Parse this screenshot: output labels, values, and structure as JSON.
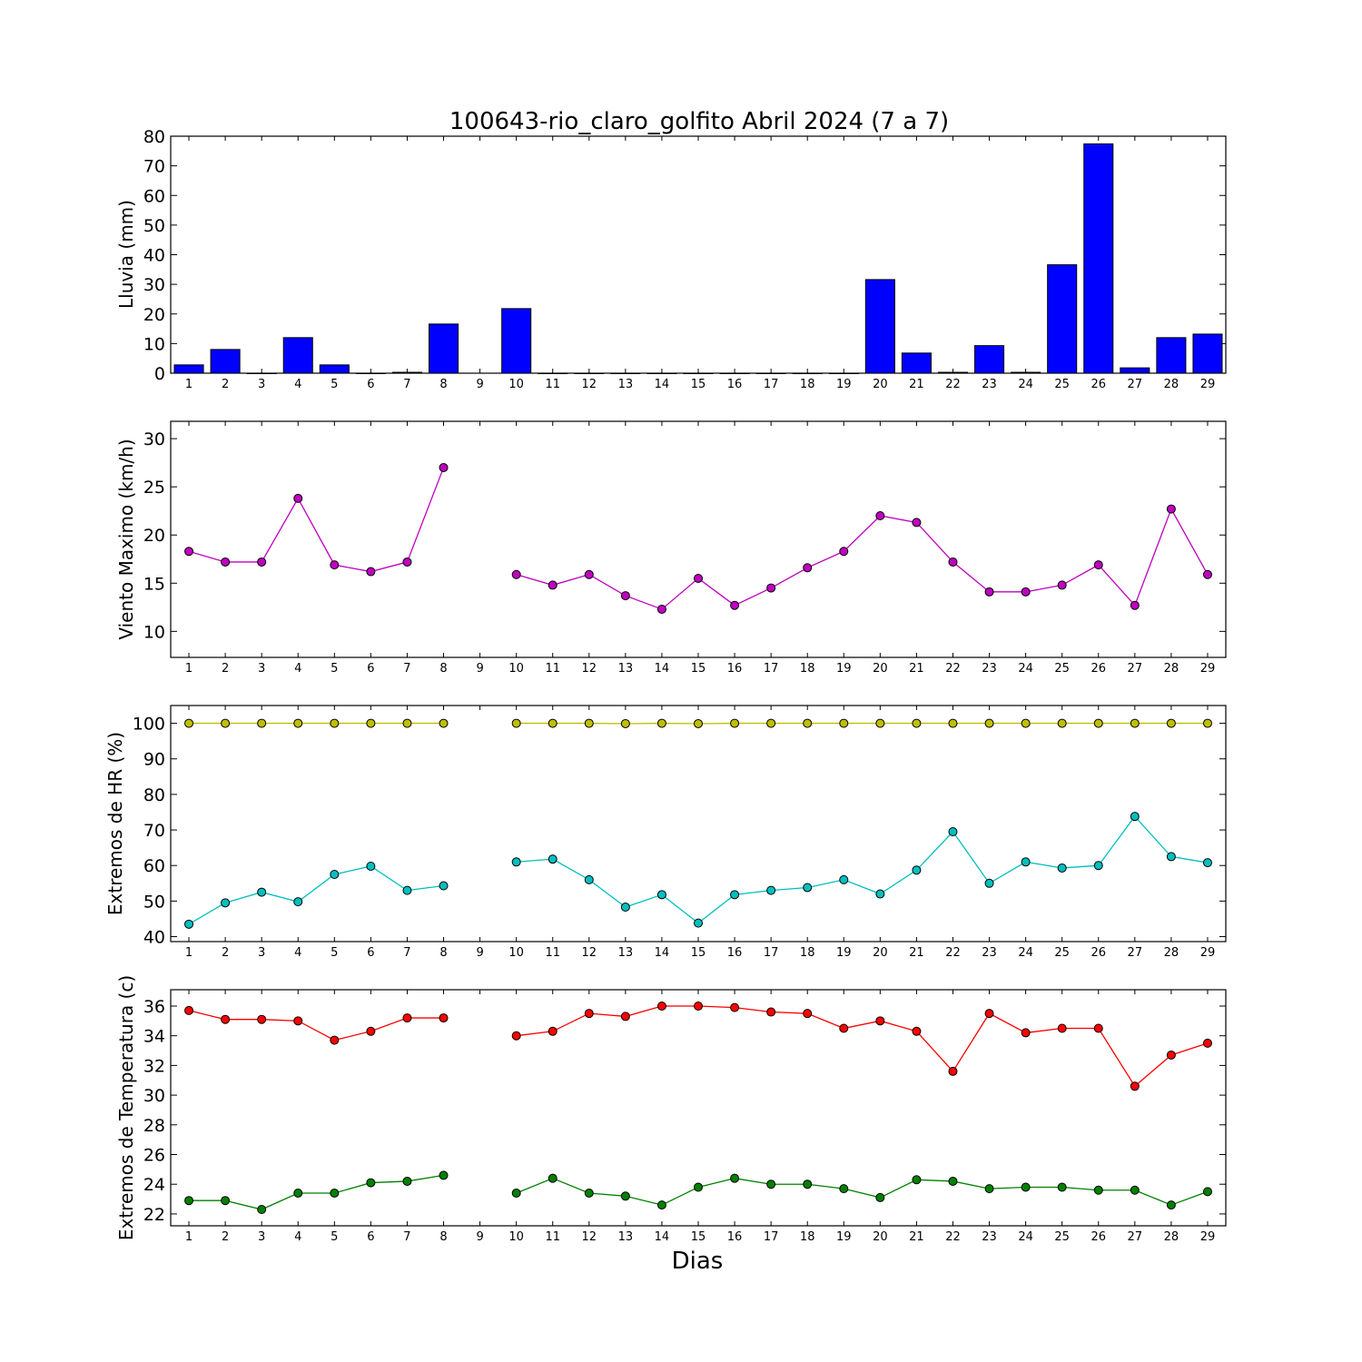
{
  "title": "100643-rio_claro_golfito Abril 2024  (7 a 7)",
  "xlabel": "Dias",
  "colors": {
    "rain": "#0000ff",
    "wind": "#bf00bf",
    "hr_max": "#bfbf00",
    "hr_min": "#00bfbf",
    "temp_max": "#ff0000",
    "temp_min": "#008000"
  },
  "chart_data": [
    {
      "type": "bar",
      "ylabel": "Lluvia (mm)",
      "ylim": [
        0,
        80
      ],
      "yticks": [
        0,
        10,
        20,
        30,
        40,
        50,
        60,
        70,
        80
      ],
      "x": [
        1,
        2,
        3,
        4,
        5,
        6,
        7,
        8,
        9,
        10,
        11,
        12,
        13,
        14,
        15,
        16,
        17,
        18,
        19,
        20,
        21,
        22,
        23,
        24,
        25,
        26,
        27,
        28,
        29
      ],
      "series": [
        {
          "color_key": "rain",
          "values": [
            2.8,
            8.0,
            0,
            12.0,
            2.8,
            0,
            0.3,
            16.6,
            null,
            21.8,
            0,
            0,
            0,
            0,
            0,
            0,
            0,
            0,
            0,
            31.6,
            6.8,
            0.3,
            9.3,
            0.3,
            36.6,
            77.4,
            1.8,
            12.0,
            13.2
          ]
        }
      ]
    },
    {
      "type": "line",
      "ylabel": "Viento Maximo (km/h)",
      "ylim": [
        7.3,
        31.8
      ],
      "yticks": [
        10,
        15,
        20,
        25,
        30
      ],
      "x": [
        1,
        2,
        3,
        4,
        5,
        6,
        7,
        8,
        9,
        10,
        11,
        12,
        13,
        14,
        15,
        16,
        17,
        18,
        19,
        20,
        21,
        22,
        23,
        24,
        25,
        26,
        27,
        28,
        29
      ],
      "series": [
        {
          "color_key": "wind",
          "values": [
            18.3,
            17.2,
            17.2,
            23.8,
            16.9,
            16.2,
            17.2,
            27.0,
            null,
            15.9,
            14.8,
            15.9,
            13.7,
            12.3,
            15.5,
            12.7,
            14.5,
            16.6,
            18.3,
            22.0,
            21.3,
            17.2,
            14.1,
            14.1,
            14.8,
            16.9,
            12.7,
            22.7,
            15.9
          ]
        }
      ]
    },
    {
      "type": "line",
      "ylabel": "Extremos de HR (%)",
      "ylim": [
        38.6,
        105
      ],
      "yticks": [
        40,
        50,
        60,
        70,
        80,
        90,
        100
      ],
      "x": [
        1,
        2,
        3,
        4,
        5,
        6,
        7,
        8,
        9,
        10,
        11,
        12,
        13,
        14,
        15,
        16,
        17,
        18,
        19,
        20,
        21,
        22,
        23,
        24,
        25,
        26,
        27,
        28,
        29
      ],
      "series": [
        {
          "color_key": "hr_max",
          "values": [
            100,
            100,
            100,
            100,
            100,
            100,
            100,
            100,
            null,
            100,
            100,
            100,
            99.9,
            100,
            99.9,
            100,
            100,
            100,
            100,
            100,
            100,
            100,
            100,
            100,
            100,
            100,
            100,
            100,
            100
          ]
        },
        {
          "color_key": "hr_min",
          "values": [
            43.5,
            49.5,
            52.5,
            49.8,
            57.5,
            59.8,
            53.0,
            54.3,
            null,
            61.0,
            61.8,
            56.0,
            48.3,
            51.8,
            43.8,
            51.8,
            53.0,
            53.8,
            56.0,
            52.0,
            58.7,
            69.5,
            55.0,
            61.0,
            59.3,
            60.0,
            73.8,
            62.5,
            60.8
          ]
        }
      ]
    },
    {
      "type": "line",
      "ylabel": "Extremos de Temperatura (c)",
      "ylim": [
        21.2,
        37.1
      ],
      "yticks": [
        22,
        24,
        26,
        28,
        30,
        32,
        34,
        36
      ],
      "x": [
        1,
        2,
        3,
        4,
        5,
        6,
        7,
        8,
        9,
        10,
        11,
        12,
        13,
        14,
        15,
        16,
        17,
        18,
        19,
        20,
        21,
        22,
        23,
        24,
        25,
        26,
        27,
        28,
        29
      ],
      "series": [
        {
          "color_key": "temp_max",
          "values": [
            35.7,
            35.1,
            35.1,
            35.0,
            33.7,
            34.3,
            35.2,
            35.2,
            null,
            34.0,
            34.3,
            35.5,
            35.3,
            36.0,
            36.0,
            35.9,
            35.6,
            35.5,
            34.5,
            35.0,
            34.3,
            31.6,
            35.5,
            34.2,
            34.5,
            34.5,
            30.6,
            32.7,
            33.5
          ]
        },
        {
          "color_key": "temp_min",
          "values": [
            22.9,
            22.9,
            22.3,
            23.4,
            23.4,
            24.1,
            24.2,
            24.6,
            null,
            23.4,
            24.4,
            23.4,
            23.2,
            22.6,
            23.8,
            24.4,
            24.0,
            24.0,
            23.7,
            23.1,
            24.3,
            24.2,
            23.7,
            23.8,
            23.8,
            23.6,
            23.6,
            22.6,
            23.5
          ]
        }
      ]
    }
  ]
}
